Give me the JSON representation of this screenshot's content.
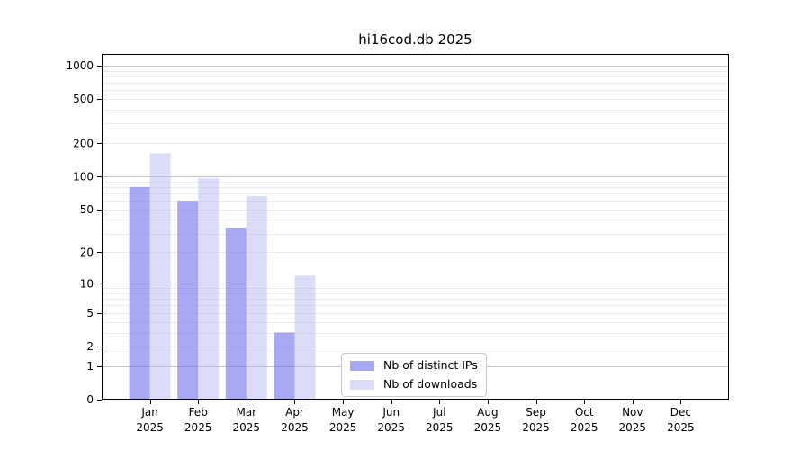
{
  "chart_data": {
    "type": "bar",
    "title": "hi16cod.db 2025",
    "x": {
      "months": [
        "Jan",
        "Feb",
        "Mar",
        "Apr",
        "May",
        "Jun",
        "Jul",
        "Aug",
        "Sep",
        "Oct",
        "Nov",
        "Dec"
      ],
      "year": "2025"
    },
    "y_axis": {
      "scale": "log(1+y)",
      "tick_labels": [
        1000,
        500,
        200,
        100,
        50,
        20,
        10,
        5,
        2,
        1,
        0
      ],
      "ylim": [
        0,
        1270
      ],
      "grid": "horizontal, minor and major"
    },
    "series": [
      {
        "name": "Nb of distinct IPs",
        "color": "#7b7bed",
        "opacity": 0.65,
        "values": [
          80,
          60,
          34,
          3,
          0,
          0,
          0,
          0,
          0,
          0,
          0,
          0
        ]
      },
      {
        "name": "Nb of downloads",
        "color": "#b9b9f3",
        "opacity": 0.5,
        "values": [
          162,
          96,
          66,
          12,
          0,
          0,
          0,
          0,
          0,
          0,
          0,
          0
        ]
      }
    ],
    "legend_position": "lower center",
    "colors": {
      "minor_grid": "#ebebeb",
      "major_grid": "#c4c4c4",
      "frame": "#000000",
      "background": "#ffffff",
      "text": "#000000",
      "legend_border": "#cbcbcb"
    }
  }
}
